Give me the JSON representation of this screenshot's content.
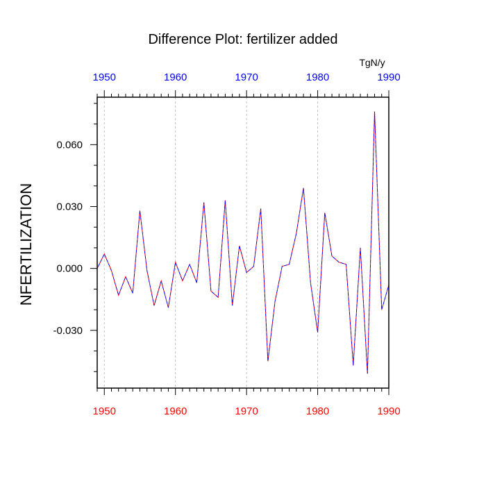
{
  "chart_data": {
    "type": "line",
    "title": "Difference Plot: fertilizer added",
    "units_label": "TgN/y",
    "ylabel": "NFERTILIZATION",
    "xlabel": "",
    "xlim": [
      1949,
      1990
    ],
    "ylim": [
      -0.058,
      0.083
    ],
    "x_ticks": [
      1950,
      1960,
      1970,
      1980,
      1990
    ],
    "x_tick_labels": [
      "1950",
      "1960",
      "1970",
      "1980",
      "1990"
    ],
    "y_ticks": [
      -0.03,
      0.0,
      0.03,
      0.06
    ],
    "y_tick_labels": [
      "-0.030",
      "0.000",
      "0.030",
      "0.060"
    ],
    "grid": "vertical dashed at x ticks",
    "top_axis_color": "#0000ff",
    "bottom_axis_color": "#ff0000",
    "series": [
      {
        "color_primary": "#0000ff",
        "color_secondary": "#ff0000",
        "style": "dashed",
        "x": [
          1949,
          1950,
          1951,
          1952,
          1953,
          1954,
          1955,
          1956,
          1957,
          1958,
          1959,
          1960,
          1961,
          1962,
          1963,
          1964,
          1965,
          1966,
          1967,
          1968,
          1969,
          1970,
          1971,
          1972,
          1973,
          1974,
          1975,
          1976,
          1977,
          1978,
          1979,
          1980,
          1981,
          1982,
          1983,
          1984,
          1985,
          1986,
          1987,
          1988,
          1989,
          1990
        ],
        "values": [
          0.0,
          0.007,
          -0.001,
          -0.013,
          -0.004,
          -0.012,
          0.028,
          -0.001,
          -0.018,
          -0.006,
          -0.019,
          0.003,
          -0.006,
          0.002,
          -0.007,
          0.032,
          -0.011,
          -0.014,
          0.033,
          -0.018,
          0.011,
          -0.002,
          0.001,
          0.029,
          -0.045,
          -0.016,
          0.001,
          0.002,
          0.017,
          0.039,
          -0.007,
          -0.031,
          0.027,
          0.006,
          0.003,
          0.002,
          -0.047,
          0.01,
          -0.051,
          0.076,
          -0.02,
          -0.008
        ]
      }
    ]
  }
}
